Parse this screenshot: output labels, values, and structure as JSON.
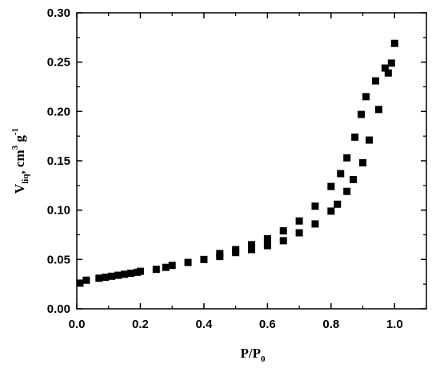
{
  "chart_data": {
    "type": "scatter",
    "title": "",
    "xlabel": {
      "main": "P/P",
      "sub": "0"
    },
    "ylabel": {
      "v": "V",
      "sub": "liq",
      "rest1": ", cm",
      "sup1": "3",
      "rest2": " g",
      "sup2": "-1"
    },
    "xlim": [
      0.0,
      1.1
    ],
    "ylim": [
      0.0,
      0.3
    ],
    "x_ticks": [
      "0.0",
      "0.2",
      "0.4",
      "0.6",
      "0.8",
      "1.0"
    ],
    "y_ticks": [
      "0.00",
      "0.05",
      "0.10",
      "0.15",
      "0.20",
      "0.25",
      "0.30"
    ],
    "grid": false,
    "legend": "none",
    "marker": "square",
    "marker_color": "#000000",
    "series": [
      {
        "points": [
          [
            0.01,
            0.026
          ],
          [
            0.03,
            0.029
          ],
          [
            0.07,
            0.031
          ],
          [
            0.09,
            0.032
          ],
          [
            0.11,
            0.033
          ],
          [
            0.13,
            0.034
          ],
          [
            0.15,
            0.035
          ],
          [
            0.17,
            0.036
          ],
          [
            0.19,
            0.037
          ],
          [
            0.2,
            0.038
          ],
          [
            0.25,
            0.04
          ],
          [
            0.28,
            0.042
          ],
          [
            0.3,
            0.044
          ],
          [
            0.35,
            0.047
          ],
          [
            0.4,
            0.05
          ],
          [
            0.45,
            0.053
          ],
          [
            0.5,
            0.057
          ],
          [
            0.55,
            0.06
          ],
          [
            0.6,
            0.064
          ],
          [
            0.65,
            0.069
          ],
          [
            0.7,
            0.077
          ],
          [
            0.75,
            0.086
          ],
          [
            0.8,
            0.099
          ],
          [
            0.82,
            0.106
          ],
          [
            0.85,
            0.119
          ],
          [
            0.87,
            0.131
          ],
          [
            0.9,
            0.148
          ],
          [
            0.92,
            0.171
          ],
          [
            0.95,
            0.202
          ],
          [
            0.98,
            0.239
          ],
          [
            0.99,
            0.249
          ],
          [
            1.0,
            0.269
          ],
          [
            0.97,
            0.244
          ],
          [
            0.94,
            0.231
          ],
          [
            0.91,
            0.215
          ],
          [
            0.895,
            0.197
          ],
          [
            0.875,
            0.174
          ],
          [
            0.85,
            0.153
          ],
          [
            0.83,
            0.137
          ],
          [
            0.8,
            0.124
          ],
          [
            0.75,
            0.104
          ],
          [
            0.7,
            0.089
          ],
          [
            0.65,
            0.079
          ],
          [
            0.6,
            0.071
          ],
          [
            0.55,
            0.065
          ],
          [
            0.5,
            0.06
          ],
          [
            0.45,
            0.056
          ]
        ]
      }
    ]
  }
}
